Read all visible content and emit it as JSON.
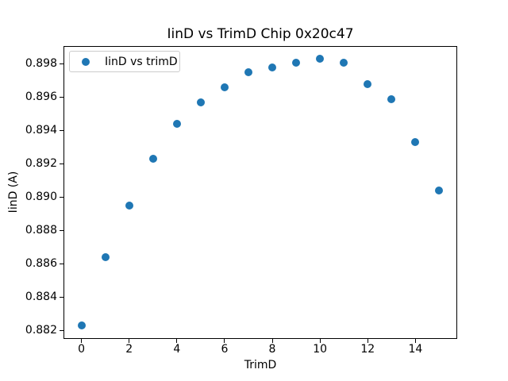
{
  "chart_data": {
    "type": "scatter",
    "title": "IinD vs TrimD Chip 0x20c47",
    "xlabel": "TrimD",
    "ylabel": "IinD (A)",
    "legend": [
      {
        "label": "IinD vs trimD",
        "marker": "circle-icon",
        "color": "#1f77b4"
      }
    ],
    "legend_location": "upper left",
    "x": [
      0,
      1,
      2,
      3,
      4,
      5,
      6,
      7,
      8,
      9,
      10,
      11,
      12,
      13,
      14,
      15
    ],
    "y": [
      0.8823,
      0.8864,
      0.8895,
      0.8923,
      0.8944,
      0.8957,
      0.8966,
      0.8975,
      0.8978,
      0.8981,
      0.8983,
      0.8981,
      0.8968,
      0.8959,
      0.8933,
      0.8904
    ],
    "xticks": [
      0,
      2,
      4,
      6,
      8,
      10,
      12,
      14
    ],
    "yticks": [
      0.882,
      0.884,
      0.886,
      0.888,
      0.89,
      0.892,
      0.894,
      0.896,
      0.898
    ],
    "ytick_decimals": 3,
    "xlim": [
      -0.75,
      15.75
    ],
    "ylim": [
      0.8815,
      0.8991
    ],
    "grid": false,
    "marker_color": "#1f77b4",
    "background_color": "#ffffff",
    "spine_color": "#000000"
  }
}
